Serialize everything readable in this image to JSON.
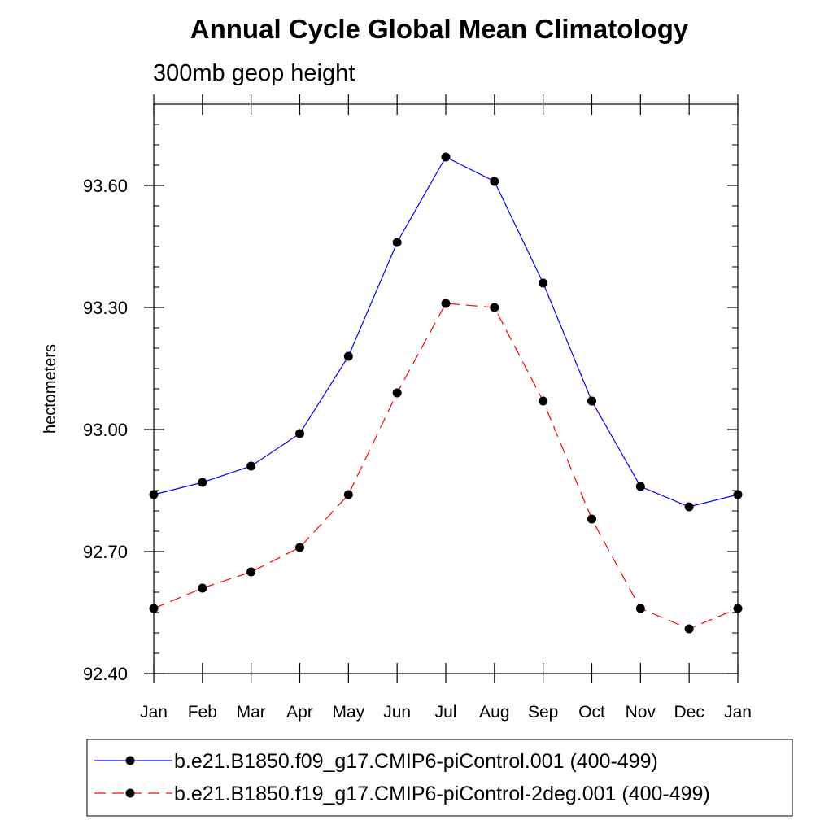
{
  "chart_data": {
    "type": "line",
    "title": "Annual Cycle Global Mean Climatology",
    "subtitle": "300mb geop height",
    "xlabel": "",
    "ylabel": "hectometers",
    "categories": [
      "Jan",
      "Feb",
      "Mar",
      "Apr",
      "May",
      "Jun",
      "Jul",
      "Aug",
      "Sep",
      "Oct",
      "Nov",
      "Dec",
      "Jan"
    ],
    "ylim": [
      92.4,
      93.8
    ],
    "yticks": [
      "92.40",
      "92.70",
      "93.00",
      "93.30",
      "93.60"
    ],
    "ytick_values": [
      92.4,
      92.7,
      93.0,
      93.3,
      93.6
    ],
    "grid": false,
    "legend_position": "bottom",
    "series": [
      {
        "name": "b.e21.B1850.f09_g17.CMIP6-piControl.001 (400-499)",
        "color": "#0000ff",
        "dash": "solid",
        "values": [
          92.84,
          92.87,
          92.91,
          92.99,
          93.18,
          93.46,
          93.67,
          93.61,
          93.36,
          93.07,
          92.86,
          92.81,
          92.84
        ]
      },
      {
        "name": "b.e21.B1850.f19_g17.CMIP6-piControl-2deg.001 (400-499)",
        "color": "#ff0000",
        "dash": "dashed",
        "values": [
          92.56,
          92.61,
          92.65,
          92.71,
          92.84,
          93.09,
          93.31,
          93.3,
          93.07,
          92.78,
          92.56,
          92.51,
          92.56
        ]
      }
    ]
  }
}
